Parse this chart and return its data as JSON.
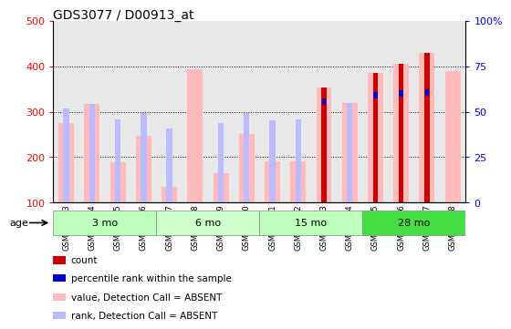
{
  "title": "GDS3077 / D00913_at",
  "samples": [
    "GSM175543",
    "GSM175544",
    "GSM175545",
    "GSM175546",
    "GSM175547",
    "GSM175548",
    "GSM175549",
    "GSM175550",
    "GSM175551",
    "GSM175552",
    "GSM175553",
    "GSM175554",
    "GSM175555",
    "GSM175556",
    "GSM175557",
    "GSM175558"
  ],
  "age_groups": [
    {
      "label": "3 mo",
      "start": 0,
      "end": 3,
      "color": "#bbffbb"
    },
    {
      "label": "6 mo",
      "start": 4,
      "end": 7,
      "color": "#ccffcc"
    },
    {
      "label": "15 mo",
      "start": 8,
      "end": 11,
      "color": "#bbffbb"
    },
    {
      "label": "28 mo",
      "start": 12,
      "end": 15,
      "color": "#44dd44"
    }
  ],
  "value_absent": [
    275,
    318,
    188,
    246,
    135,
    393,
    165,
    250,
    190,
    190,
    353,
    320,
    385,
    406,
    430,
    390
  ],
  "rank_absent": [
    308,
    318,
    282,
    298,
    263,
    0,
    275,
    298,
    280,
    282,
    0,
    320,
    0,
    0,
    0,
    0
  ],
  "count": [
    0,
    0,
    0,
    0,
    0,
    0,
    0,
    0,
    0,
    0,
    353,
    0,
    385,
    406,
    430,
    0
  ],
  "percentile_rank": [
    0,
    0,
    0,
    0,
    0,
    0,
    0,
    0,
    0,
    0,
    323,
    0,
    337,
    340,
    343,
    0
  ],
  "ylim": [
    100,
    500
  ],
  "yticks_left": [
    100,
    200,
    300,
    400,
    500
  ],
  "yticks_right": [
    0,
    25,
    50,
    75,
    100
  ],
  "yticks_right_labels": [
    "0",
    "25",
    "50",
    "75",
    "100%"
  ],
  "background_color": "#ffffff",
  "plot_bg": "#e8e8e8",
  "bar_color_value": "#ffbbbb",
  "bar_color_rank": "#bbbbff",
  "bar_color_count": "#cc0000",
  "bar_color_percentile": "#0000cc",
  "title_fontsize": 10,
  "legend_items": [
    {
      "color": "#cc0000",
      "label": "count"
    },
    {
      "color": "#0000cc",
      "label": "percentile rank within the sample"
    },
    {
      "color": "#ffbbbb",
      "label": "value, Detection Call = ABSENT"
    },
    {
      "color": "#bbbbff",
      "label": "rank, Detection Call = ABSENT"
    }
  ]
}
